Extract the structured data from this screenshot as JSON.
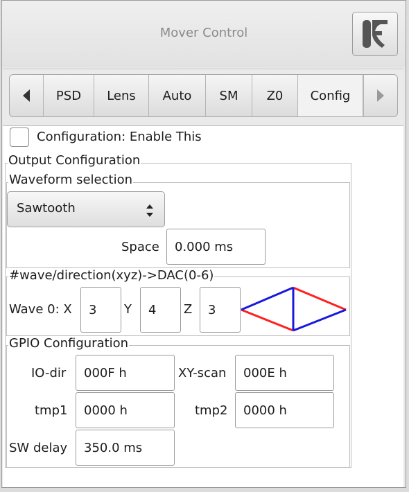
{
  "window": {
    "title": "Mover Control"
  },
  "tabs": {
    "items": [
      "PSD",
      "Lens",
      "Auto",
      "SM",
      "Z0",
      "Config"
    ],
    "active": "Config"
  },
  "enable": {
    "label": "Configuration: Enable This",
    "checked": false
  },
  "output": {
    "title": "Output Configuration",
    "waveform": {
      "title": "Waveform selection",
      "selected": "Sawtooth",
      "space_label": "Space",
      "space_value": "0.000 ms"
    }
  },
  "wave": {
    "title": "#wave/direction(xyz)->DAC(0-6)",
    "wave0_label": "Wave 0: X",
    "x_value": "3",
    "y_label": "Y",
    "y_value": "4",
    "z_label": "Z",
    "z_value": "3",
    "colors": {
      "red": "#ff2020",
      "blue": "#1818e0"
    }
  },
  "gpio": {
    "title": "GPIO Configuration",
    "io_dir_label": "IO-dir",
    "io_dir_value": "000F h",
    "xy_scan_label": "XY-scan",
    "xy_scan_value": "000E h",
    "tmp1_label": "tmp1",
    "tmp1_value": "0000 h",
    "tmp2_label": "tmp2",
    "tmp2_value": "0000 h",
    "sw_delay_label": "SW delay",
    "sw_delay_value": "350.0 ms"
  }
}
